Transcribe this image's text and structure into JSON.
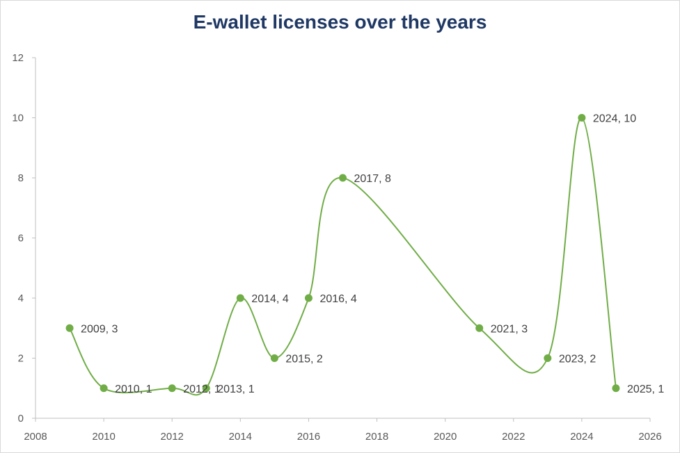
{
  "chart_data": {
    "type": "scatter",
    "title": "E-wallet licenses over the years",
    "xlabel": "",
    "ylabel": "",
    "xlim": [
      2008,
      2026
    ],
    "ylim": [
      0,
      12
    ],
    "x_ticks": [
      2008,
      2010,
      2012,
      2014,
      2016,
      2018,
      2020,
      2022,
      2024,
      2026
    ],
    "y_ticks": [
      0,
      2,
      4,
      6,
      8,
      10,
      12
    ],
    "smooth_line": true,
    "grid": false,
    "series": [
      {
        "name": "Licenses",
        "color": "#70ad47",
        "x": [
          2009,
          2010,
          2012,
          2013,
          2014,
          2015,
          2016,
          2017,
          2021,
          2023,
          2024,
          2025
        ],
        "y": [
          3,
          1,
          1,
          1,
          4,
          2,
          4,
          8,
          3,
          2,
          10,
          1
        ],
        "labels": [
          "2009, 3",
          "2010, 1",
          "2012, 1",
          "2013, 1",
          "2014, 4",
          "2015, 2",
          "2016, 4",
          "2017, 8",
          "2021, 3",
          "2023, 2",
          "2024, 10",
          "2025, 1"
        ]
      }
    ]
  }
}
